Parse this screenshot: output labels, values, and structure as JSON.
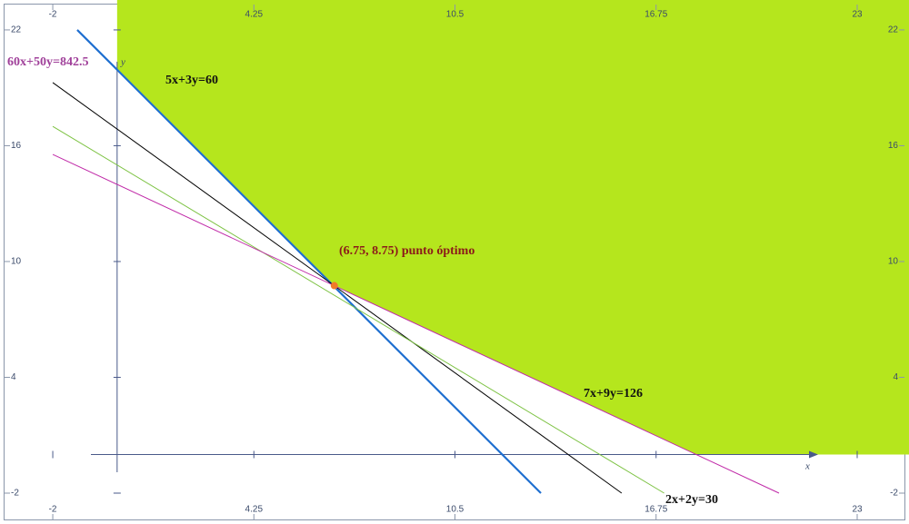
{
  "chart_data": {
    "type": "line",
    "xlim": [
      -3.64,
      24.61
    ],
    "ylim": [
      -3.6,
      23.55
    ],
    "xticks": [
      -2,
      4.25,
      10.5,
      16.75,
      23
    ],
    "yticks": [
      -2,
      4,
      10,
      16,
      22
    ],
    "x_label": "x",
    "y_label": "y",
    "grid": false,
    "feasible_region": {
      "color": "#b5e61d",
      "x": [
        0,
        24.61,
        24.61,
        18,
        6.75,
        0
      ],
      "y": [
        23.55,
        23.55,
        0,
        0,
        8.75,
        20
      ]
    },
    "series": [
      {
        "name": "5x+3y=60",
        "color": "#1f6fd0",
        "x": [
          -1.24,
          13.17
        ],
        "values": [
          22,
          -2
        ]
      },
      {
        "name": "60x+50y=842.5",
        "color": "#000000",
        "x": [
          -2,
          15.68
        ],
        "values": [
          19.27,
          -2
        ]
      },
      {
        "name": "2x+2y=30",
        "color": "#7cc242",
        "x": [
          -2,
          17
        ],
        "values": [
          17,
          -2
        ]
      },
      {
        "name": "7x+9y=126",
        "color": "#c02aa8",
        "x": [
          -2,
          20.57
        ],
        "values": [
          15.55,
          -2
        ]
      }
    ],
    "optimum": {
      "x": 6.75,
      "y": 8.75,
      "label": "(6.75, 8.75) punto óptimo",
      "color": "#f07a2a"
    }
  }
}
